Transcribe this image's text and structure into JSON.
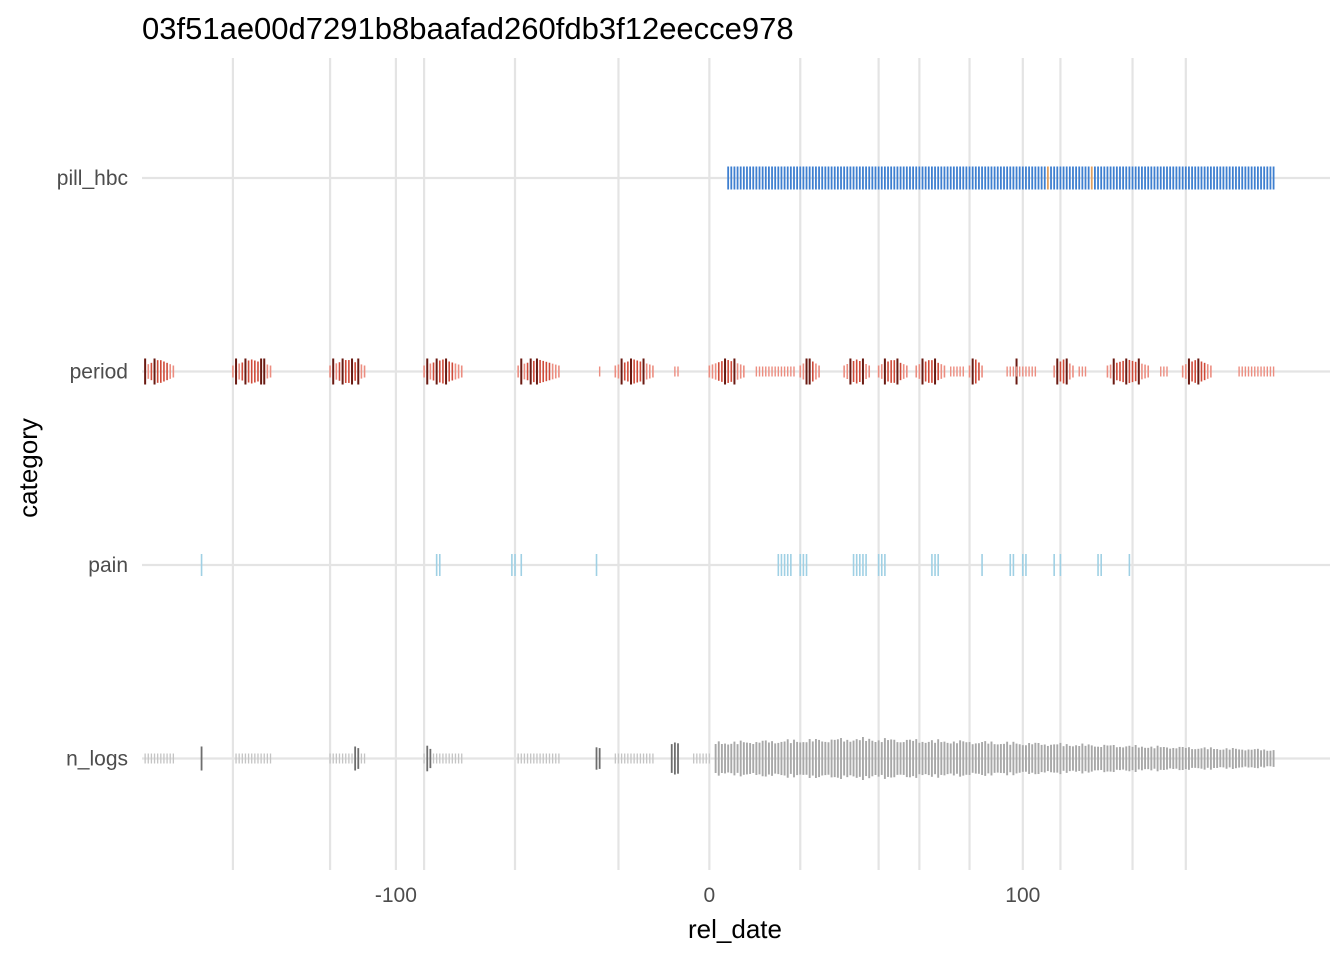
{
  "chart_data": {
    "type": "scatter",
    "title": "03f51ae00d7291b8baafad260fdb3f12eecce978",
    "xlabel": "rel_date",
    "ylabel": "category",
    "xlim": [
      -181,
      198
    ],
    "x_ticks": [
      -100,
      0,
      100
    ],
    "x_tick_labels": [
      "-100",
      "0",
      "100"
    ],
    "x_minor_gridlines": [
      -152,
      -121,
      -91,
      -62,
      -29,
      29,
      54,
      67,
      83,
      112,
      135,
      152
    ],
    "categories": [
      "pill_hbc",
      "period",
      "pain",
      "n_logs"
    ],
    "grid": true,
    "legend": "none",
    "mark": "vertical tick per day, height proportional to value",
    "colors": {
      "pill_hbc": "#3e7fd0",
      "pill_hbc_alt": "#e0a060",
      "period_light": "#ec8d80",
      "period_mid": "#cf4a38",
      "period_dark": "#6a1a12",
      "pain": "#9fd0e4",
      "n_logs_light": "#c4c4c4",
      "n_logs": "#a8a8a8",
      "n_logs_dark": "#6e6e6e",
      "grid": "#e4e4e4"
    },
    "series": [
      {
        "category": "pill_hbc",
        "ranges": [
          [
            6,
            180
          ]
        ],
        "alt_days": [
          108,
          122
        ]
      },
      {
        "category": "period",
        "clusters": [
          {
            "days": [
              -180,
              -171
            ],
            "dark": [
              -180,
              -177
            ]
          },
          {
            "days": [
              -152,
              -140
            ],
            "dark": [
              -151,
              -148,
              -143,
              -142
            ]
          },
          {
            "days": [
              -121,
              -110
            ],
            "dark": [
              -120,
              -117,
              -114,
              -112
            ]
          },
          {
            "days": [
              -91,
              -79
            ],
            "dark": [
              -90,
              -87,
              -84
            ]
          },
          {
            "days": [
              -61,
              -48
            ],
            "dark": [
              -60,
              -57,
              -55
            ]
          },
          {
            "days": [
              -30,
              -18
            ],
            "dark": [
              -28,
              -25,
              -21
            ]
          },
          {
            "days": [
              0,
              11
            ],
            "dark": [
              5,
              8
            ]
          },
          {
            "days": [
              29,
              35
            ],
            "dark": [
              31,
              32
            ]
          },
          {
            "days": [
              43,
              51
            ],
            "dark": [
              45,
              49
            ]
          },
          {
            "days": [
              54,
              63
            ],
            "dark": [
              56,
              60
            ]
          },
          {
            "days": [
              66,
              75
            ],
            "dark": [
              68,
              72
            ]
          },
          {
            "days": [
              83,
              87
            ],
            "dark": [
              84
            ]
          },
          {
            "days": [
              98,
              98
            ],
            "dark": [
              98
            ]
          },
          {
            "days": [
              110,
              116
            ],
            "dark": [
              111,
              114
            ]
          },
          {
            "days": [
              127,
              140
            ],
            "dark": [
              129,
              133,
              137
            ]
          },
          {
            "days": [
              151,
              160
            ],
            "dark": [
              153,
              156
            ]
          }
        ],
        "sparse_ranges": [
          [
            -35,
            -35
          ],
          [
            -11,
            -10
          ],
          [
            15,
            27
          ],
          [
            77,
            81
          ],
          [
            95,
            104
          ],
          [
            118,
            120
          ],
          [
            144,
            146
          ],
          [
            169,
            180
          ]
        ]
      },
      {
        "category": "pain",
        "days": [
          -162,
          -87,
          -86,
          -63,
          -62,
          -60,
          -36,
          22,
          23,
          24,
          25,
          26,
          29,
          30,
          31,
          46,
          47,
          48,
          49,
          50,
          54,
          55,
          56,
          71,
          72,
          73,
          87,
          96,
          97,
          100,
          101,
          110,
          112,
          124,
          125,
          134
        ]
      },
      {
        "category": "n_logs",
        "sparse_ranges": [
          [
            -180,
            -171
          ],
          [
            -151,
            -140
          ],
          [
            -121,
            -110
          ],
          [
            -91,
            -79
          ],
          [
            -61,
            -48
          ],
          [
            -30,
            -18
          ],
          [
            -5,
            0
          ]
        ],
        "spikes": [
          {
            "day": -162,
            "value": 1.5
          },
          {
            "day": -113,
            "value": 1.5
          },
          {
            "day": -112,
            "value": 1.3
          },
          {
            "day": -90,
            "value": 1.6
          },
          {
            "day": -89,
            "value": 1.2
          },
          {
            "day": -36,
            "value": 1.4
          },
          {
            "day": -35,
            "value": 1.3
          },
          {
            "day": -12,
            "value": 1.8
          },
          {
            "day": -11,
            "value": 2.0
          },
          {
            "day": -10,
            "value": 1.9
          }
        ],
        "dense_range": [
          2,
          180
        ],
        "peak_day": 48,
        "peak_value": 2.7
      }
    ]
  }
}
